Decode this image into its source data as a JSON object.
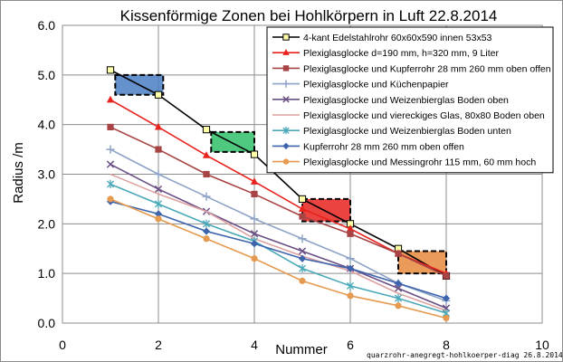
{
  "chart_data": {
    "type": "line",
    "title": "Kissenförmige Zonen bei Hohlkörpern in Luft   22.8.2014",
    "xlabel": "Nummer",
    "ylabel": "Radius /m",
    "xlim": [
      0,
      10
    ],
    "ylim": [
      0.0,
      6.0
    ],
    "xticks": [
      "0",
      "2",
      "4",
      "6",
      "8",
      "10"
    ],
    "yticks": [
      "0.0",
      "1.0",
      "2.0",
      "3.0",
      "4.0",
      "5.0",
      "6.0"
    ],
    "grid": true,
    "legend_position": "top-right",
    "footer_note": "quarzrohr-anegregt-hohlkoerper-diag 26.8.2014",
    "series": [
      {
        "name": "4-kant Edelstahlrohr 60x60x590  innen 53x53",
        "color": "#000000",
        "marker": "square-open",
        "x": [
          1,
          2,
          3,
          4,
          5,
          6,
          7,
          8
        ],
        "y": [
          5.1,
          4.6,
          3.9,
          3.4,
          2.5,
          2.0,
          1.5,
          0.95
        ]
      },
      {
        "name": "Plexiglasglocke  d=190 mm, h=320 mm, 9 Liter",
        "color": "#e8231e",
        "marker": "triangle",
        "x": [
          1,
          2,
          3,
          4,
          5,
          6,
          7,
          8
        ],
        "y": [
          4.5,
          3.95,
          3.38,
          2.85,
          2.3,
          1.9,
          1.4,
          1.0
        ]
      },
      {
        "name": "Plexiglasglocke und Kupferrohr 28 mm 260 mm oben offen",
        "color": "#a84445",
        "marker": "square",
        "x": [
          1,
          2,
          3,
          4,
          5,
          6,
          7,
          8
        ],
        "y": [
          3.95,
          3.5,
          3.0,
          2.6,
          2.15,
          1.8,
          1.4,
          0.95
        ]
      },
      {
        "name": "Plexiglasglocke und Küchenpapier",
        "color": "#8ea3c7",
        "marker": "plus",
        "x": [
          1,
          2,
          3,
          4,
          5,
          6,
          7,
          8
        ],
        "y": [
          3.5,
          3.0,
          2.55,
          2.1,
          1.7,
          1.3,
          0.8,
          0.45
        ]
      },
      {
        "name": "Plexiglasglocke und Weizenbierglas Boden oben",
        "color": "#6a4f84",
        "marker": "x",
        "x": [
          1,
          2,
          3,
          4,
          5,
          6,
          7,
          8
        ],
        "y": [
          3.2,
          2.7,
          2.25,
          1.8,
          1.45,
          1.1,
          0.7,
          0.3
        ]
      },
      {
        "name": "Plexiglasglocke und viereckiges Glas, 80x80 Boden oben",
        "color": "#dda2a2",
        "marker": "none",
        "x": [
          1,
          2,
          3,
          4,
          5,
          6,
          7,
          8
        ],
        "y": [
          3.0,
          2.6,
          2.25,
          1.7,
          1.35,
          1.05,
          0.6,
          0.25
        ]
      },
      {
        "name": "Plexiglasglocke und Weizenbierglas Boden unten",
        "color": "#4aa9b9",
        "marker": "star",
        "x": [
          1,
          2,
          3,
          4,
          5,
          6,
          7,
          8
        ],
        "y": [
          2.8,
          2.4,
          2.0,
          1.65,
          1.1,
          0.75,
          0.5,
          0.2
        ]
      },
      {
        "name": "Kupferrohr 28 mm 260 mm oben offen",
        "color": "#3d64ad",
        "marker": "diamond",
        "x": [
          1,
          2,
          3,
          4,
          5,
          6,
          7,
          8
        ],
        "y": [
          2.45,
          2.2,
          1.85,
          1.6,
          1.3,
          1.1,
          0.8,
          0.5
        ]
      },
      {
        "name": "Plexiglasglocke und Messingrohr 115 mm, 60 mm hoch",
        "color": "#e59a4f",
        "marker": "circle",
        "x": [
          1,
          2,
          3,
          4,
          5,
          6,
          7,
          8
        ],
        "y": [
          2.5,
          2.1,
          1.7,
          1.3,
          0.85,
          0.55,
          0.35,
          0.1
        ]
      }
    ],
    "zones": [
      {
        "name": "zone-blue",
        "color": "#4a7ec4",
        "x": [
          1.1,
          2.1
        ],
        "y": [
          4.6,
          5.0
        ]
      },
      {
        "name": "zone-green",
        "color": "#2fbf68",
        "x": [
          3.1,
          4.0
        ],
        "y": [
          3.45,
          3.85
        ]
      },
      {
        "name": "zone-red",
        "color": "#e8231e",
        "x": [
          5.0,
          6.0
        ],
        "y": [
          2.05,
          2.5
        ]
      },
      {
        "name": "zone-orange",
        "color": "#e88a3c",
        "x": [
          7.0,
          8.0
        ],
        "y": [
          1.0,
          1.45
        ]
      }
    ]
  }
}
